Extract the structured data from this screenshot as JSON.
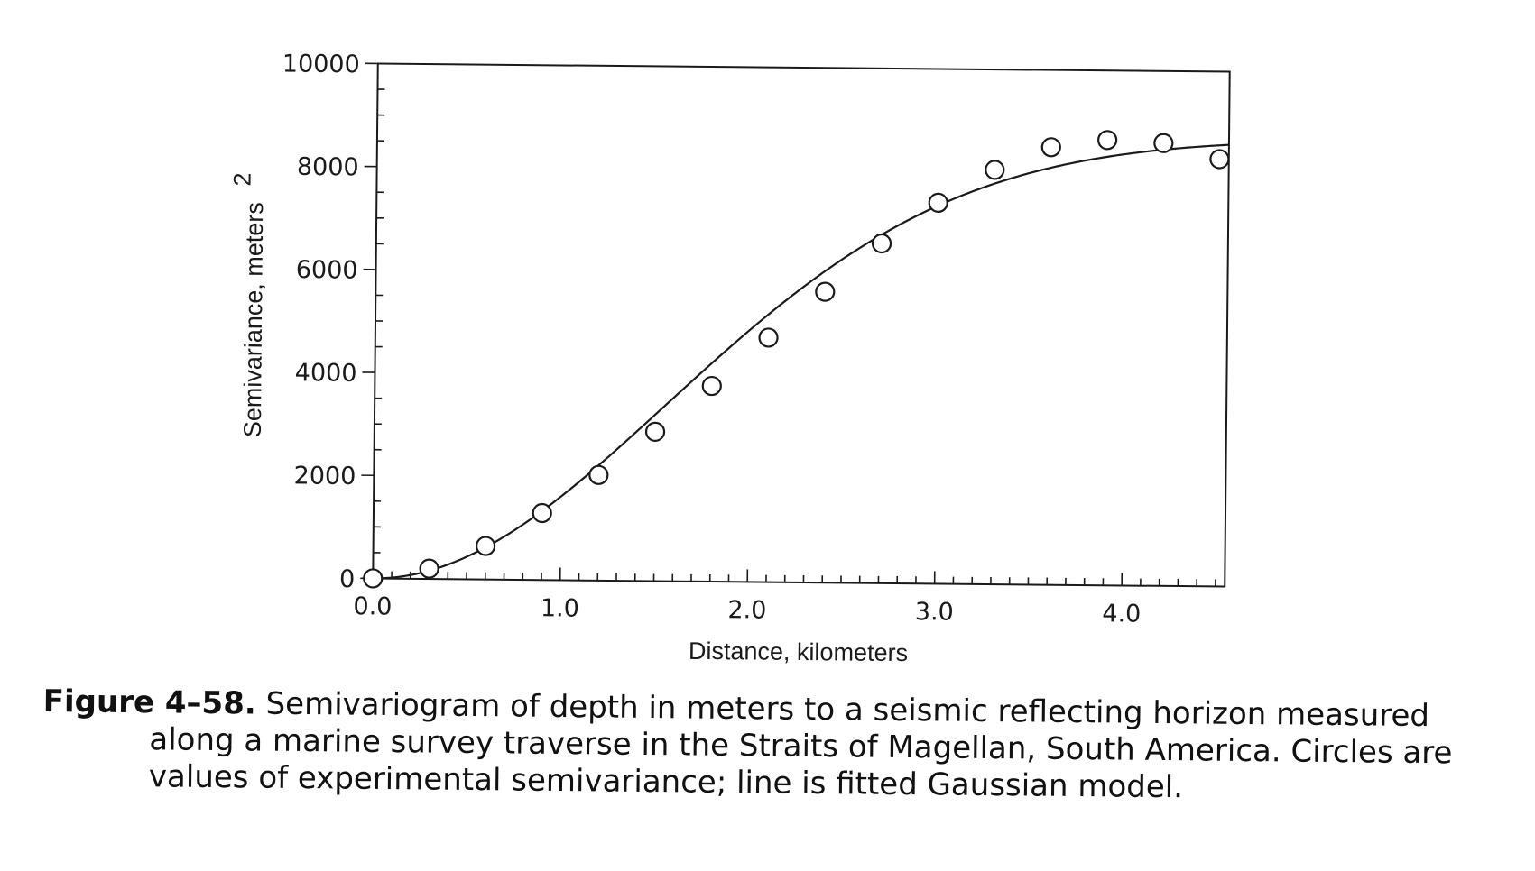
{
  "chart_data": {
    "type": "scatter",
    "xlabel": "Distance,  kilometers",
    "ylabel": "Semivariance,  meters",
    "ylabel_superscript": "2",
    "xlim": [
      0.0,
      4.55
    ],
    "ylim": [
      0,
      10000
    ],
    "x_ticks": [
      "0.0",
      "1.0",
      "2.0",
      "3.0",
      "4.0"
    ],
    "x_tick_values": [
      0.0,
      1.0,
      2.0,
      3.0,
      4.0
    ],
    "y_ticks": [
      "0",
      "2000",
      "4000",
      "6000",
      "8000",
      "10000"
    ],
    "y_tick_values": [
      0,
      2000,
      4000,
      6000,
      8000,
      10000
    ],
    "grid": false,
    "series": [
      {
        "kind": "points",
        "marker": "open-circle",
        "x": [
          0.0,
          0.3,
          0.6,
          0.9,
          1.2,
          1.5,
          1.8,
          2.1,
          2.4,
          2.7,
          3.0,
          3.3,
          3.6,
          3.9,
          4.2,
          4.5
        ],
        "y": [
          0,
          200,
          650,
          1300,
          2050,
          2900,
          3800,
          4750,
          5650,
          6600,
          7400,
          8050,
          8500,
          8650,
          8600,
          8300
        ]
      },
      {
        "kind": "line",
        "model": "gaussian",
        "sill": 8700,
        "range": 2.2
      }
    ]
  },
  "caption": {
    "label": "Figure 4–58.",
    "line1": "Semivariogram of depth in meters to a seismic reflecting horizon measured",
    "line2": "along a marine survey traverse in the Straits of Magellan, South America.  Circles are",
    "line3": "values of experimental semivariance; line is fitted Gaussian model."
  }
}
